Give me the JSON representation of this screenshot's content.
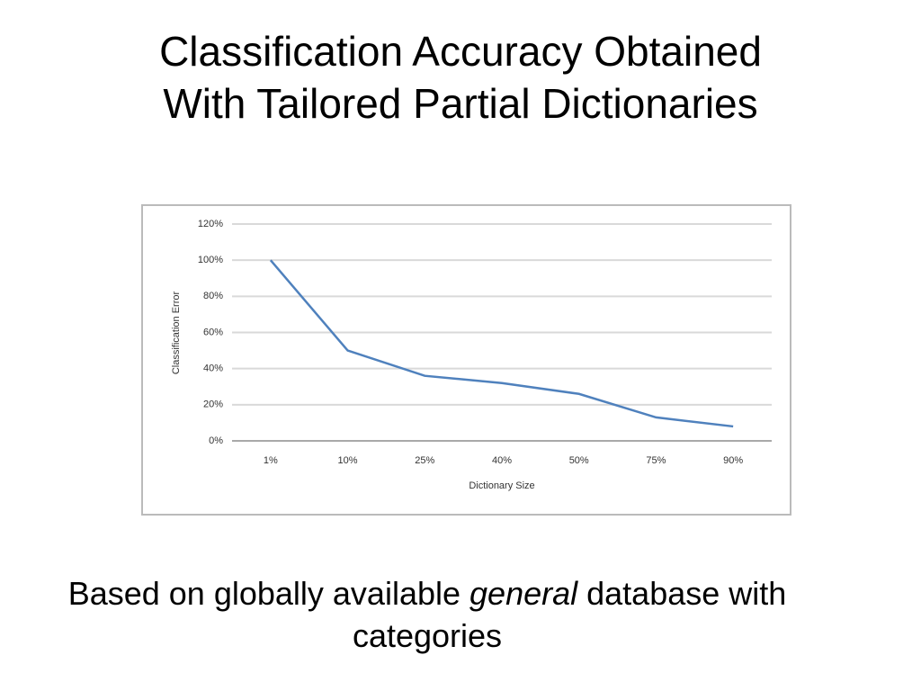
{
  "slide": {
    "title_lines": [
      "Classification Accuracy Obtained",
      "With Tailored Partial Dictionaries"
    ],
    "caption": {
      "before": "Based on globally available",
      "emphasis": "general",
      "after": "database with categories"
    }
  },
  "chart_data": {
    "type": "line",
    "x_label": "Dictionary Size",
    "y_label": "Classification Error",
    "categories": [
      "1%",
      "10%",
      "25%",
      "40%",
      "50%",
      "75%",
      "90%"
    ],
    "series": [
      {
        "name": "Classification Error",
        "color": "#4f81bd",
        "values": [
          100,
          50,
          36,
          32,
          26,
          13,
          8
        ]
      }
    ],
    "ylim": [
      0,
      120
    ],
    "yticks": [
      {
        "value": 0,
        "label": "0%"
      },
      {
        "value": 20,
        "label": "20%"
      },
      {
        "value": 40,
        "label": "40%"
      },
      {
        "value": 60,
        "label": "60%"
      },
      {
        "value": 80,
        "label": "80%"
      },
      {
        "value": 100,
        "label": "100%"
      },
      {
        "value": 120,
        "label": "120%"
      }
    ],
    "grid": true
  }
}
